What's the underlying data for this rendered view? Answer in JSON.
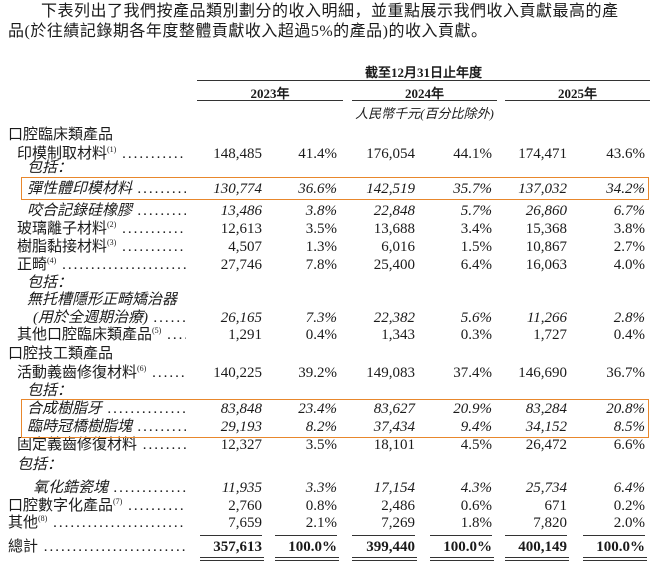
{
  "intro": {
    "line1": "　　下表列出了我們按產品類別劃分的收入明細，並重點展示我們收入貢獻最高的產",
    "line2": "品(於往績記錄期各年度整體貢獻收入超過5%的產品)的收入貢獻。"
  },
  "header": {
    "period": "截至12月31日止年度",
    "years": [
      "2023年",
      "2024年",
      "2025年"
    ],
    "unit": "人民幣千元(百分比除外)"
  },
  "highlight_color": "#e8872c",
  "rows": [
    {
      "label": "口腔臨床類產品",
      "level": 0,
      "values": []
    },
    {
      "label": "印模制取材料",
      "sup": "(1)",
      "level": 1,
      "dots": true,
      "values": [
        "148,485",
        "41.4%",
        "176,054",
        "44.1%",
        "174,471",
        "43.6%"
      ]
    },
    {
      "label": "包括：",
      "level": 2,
      "italic": true,
      "values": []
    },
    {
      "label": "彈性體印模材料",
      "level": 2,
      "italic": true,
      "dots": true,
      "highlight": true,
      "values": [
        "130,774",
        "36.6%",
        "142,519",
        "35.7%",
        "137,032",
        "34.2%"
      ]
    },
    {
      "label": "咬合記錄硅橡膠",
      "level": 2,
      "italic": true,
      "dots": true,
      "values": [
        "13,486",
        "3.8%",
        "22,848",
        "5.7%",
        "26,860",
        "6.7%"
      ]
    },
    {
      "label": "玻璃離子材料",
      "sup": "(2)",
      "level": 1,
      "dots": true,
      "values": [
        "12,613",
        "3.5%",
        "13,688",
        "3.4%",
        "15,368",
        "3.8%"
      ]
    },
    {
      "label": "樹脂黏接材料",
      "sup": "(3)",
      "level": 1,
      "dots": true,
      "values": [
        "4,507",
        "1.3%",
        "6,016",
        "1.5%",
        "10,867",
        "2.7%"
      ]
    },
    {
      "label": "正畸",
      "sup": "(4)",
      "level": 1,
      "dots": true,
      "values": [
        "27,746",
        "7.8%",
        "25,400",
        "6.4%",
        "16,063",
        "4.0%"
      ]
    },
    {
      "label": "包括：",
      "level": 2,
      "italic": true,
      "values": []
    },
    {
      "label": "無托槽隱形正畸矯治器",
      "level": 2,
      "italic": true,
      "values": []
    },
    {
      "label": "(用於全週期治療)",
      "level": 3,
      "italic": true,
      "dots": true,
      "values": [
        "26,165",
        "7.3%",
        "22,382",
        "5.6%",
        "11,266",
        "2.8%"
      ]
    },
    {
      "label": "其他口腔臨床類產品",
      "sup": "(5)",
      "level": 1,
      "dots": true,
      "values": [
        "1,291",
        "0.4%",
        "1,343",
        "0.3%",
        "1,727",
        "0.4%"
      ]
    },
    {
      "label": "口腔技工類產品",
      "level": 0,
      "values": []
    },
    {
      "label": "活動義齒修復材料",
      "sup": "(6)",
      "level": 1,
      "dots": true,
      "values": [
        "140,225",
        "39.2%",
        "149,083",
        "37.4%",
        "146,690",
        "36.7%"
      ]
    },
    {
      "label": "包括：",
      "level": 2,
      "italic": true,
      "values": []
    },
    {
      "label": "合成樹脂牙",
      "level": 2,
      "italic": true,
      "dots": true,
      "highlight": true,
      "values": [
        "83,848",
        "23.4%",
        "83,627",
        "20.9%",
        "83,284",
        "20.8%"
      ]
    },
    {
      "label": "臨時冠橋樹脂塊",
      "level": 2,
      "italic": true,
      "dots": true,
      "highlight": true,
      "values": [
        "29,193",
        "8.2%",
        "37,434",
        "9.4%",
        "34,152",
        "8.5%"
      ]
    },
    {
      "label": "固定義齒修復材料",
      "level": 1,
      "dots": true,
      "values": [
        "12,327",
        "3.5%",
        "18,101",
        "4.5%",
        "26,472",
        "6.6%"
      ]
    },
    {
      "label": "包括：",
      "level": 1,
      "italic": true,
      "values": []
    },
    {
      "label": "氧化鋯瓷塊",
      "level": 3,
      "italic": true,
      "dots": true,
      "values": [
        "11,935",
        "3.3%",
        "17,154",
        "4.3%",
        "25,734",
        "6.4%"
      ]
    },
    {
      "label": "口腔數字化產品",
      "sup": "(7)",
      "level": 0,
      "dots": true,
      "values": [
        "2,760",
        "0.8%",
        "2,486",
        "0.6%",
        "671",
        "0.2%"
      ]
    },
    {
      "label": "其他",
      "sup": "(8)",
      "level": 0,
      "dots": true,
      "values": [
        "7,659",
        "2.1%",
        "7,269",
        "1.8%",
        "7,820",
        "2.0%"
      ]
    },
    {
      "label": "總計",
      "level": 0,
      "dots": true,
      "bold_values": true,
      "values": [
        "357,613",
        "100.0%",
        "399,440",
        "100.0%",
        "400,149",
        "100.0%"
      ]
    }
  ]
}
